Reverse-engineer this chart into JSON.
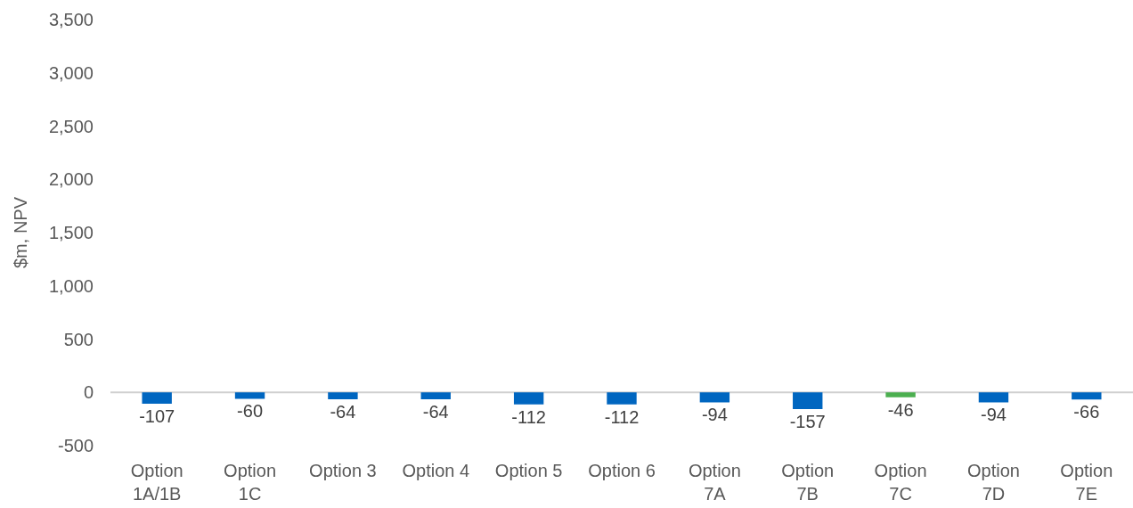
{
  "chart_data": {
    "type": "bar",
    "ylabel": "$m, NPV",
    "categories": [
      "Option 1A/1B",
      "Option 1C",
      "Option 3",
      "Option 4",
      "Option 5",
      "Option 6",
      "Option 7A",
      "Option 7B",
      "Option 7C",
      "Option 7D",
      "Option 7E"
    ],
    "values": [
      -107,
      -60,
      -64,
      -64,
      -112,
      -112,
      -94,
      -157,
      -46,
      -94,
      -66
    ],
    "colors": [
      "#0066c0",
      "#0066c0",
      "#0066c0",
      "#0066c0",
      "#0066c0",
      "#0066c0",
      "#0066c0",
      "#0066c0",
      "#4caf50",
      "#0066c0",
      "#0066c0"
    ],
    "ylim": [
      -500,
      3500
    ],
    "yticks": [
      -500,
      0,
      500,
      {
        "value": 1000,
        "label": "1,000"
      },
      {
        "value": 1500,
        "label": "1,500"
      },
      {
        "value": 2000,
        "label": "2,000"
      },
      {
        "value": 2500,
        "label": "2,500"
      },
      {
        "value": 3000,
        "label": "3,000"
      },
      {
        "value": 3500,
        "label": "3,500"
      }
    ],
    "ref_lines": [
      {
        "axis": "y",
        "value": 0,
        "color": "#d0d0d0"
      }
    ],
    "data_labels": true
  }
}
